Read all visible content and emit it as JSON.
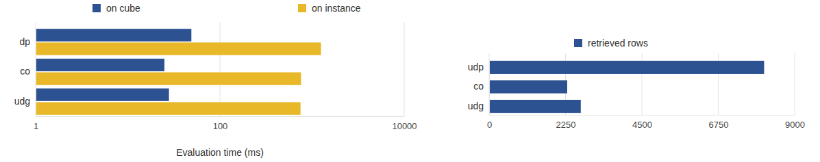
{
  "chart_data": [
    {
      "type": "bar",
      "orientation": "horizontal",
      "log": "x",
      "categories": [
        "dp",
        "co",
        "udg"
      ],
      "series": [
        {
          "name": "on cube",
          "color": "#2d5291",
          "values": [
            49,
            25,
            28
          ]
        },
        {
          "name": "on instance",
          "color": "#e8b828",
          "values": [
            1250,
            760,
            750
          ]
        }
      ],
      "xlim": [
        1,
        10000
      ],
      "xticks": [
        1,
        100,
        10000
      ],
      "xlabel": "Evaluation time (ms)",
      "grid": true,
      "legend": "top"
    },
    {
      "type": "bar",
      "orientation": "horizontal",
      "categories": [
        "udp",
        "co",
        "udg"
      ],
      "series": [
        {
          "name": "retrieved rows",
          "color": "#2d5291",
          "values": [
            8100,
            2300,
            2700
          ]
        }
      ],
      "xlim": [
        0,
        9000
      ],
      "xticks": [
        0,
        2250,
        4500,
        6750,
        9000
      ],
      "grid": true,
      "legend": "top"
    }
  ]
}
